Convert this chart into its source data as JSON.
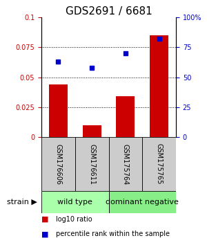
{
  "title": "GDS2691 / 6681",
  "samples": [
    "GSM176606",
    "GSM176611",
    "GSM175764",
    "GSM175765"
  ],
  "bar_values": [
    0.044,
    0.01,
    0.034,
    0.085
  ],
  "percentile_values": [
    63,
    58,
    70,
    82
  ],
  "ylim_left": [
    0,
    0.1
  ],
  "ylim_right": [
    0,
    100
  ],
  "yticks_left": [
    0,
    0.025,
    0.05,
    0.075,
    0.1
  ],
  "ytick_labels_left": [
    "0",
    "0.025",
    "0.05",
    "0.075",
    "0.1"
  ],
  "yticks_right": [
    0,
    25,
    50,
    75,
    100
  ],
  "ytick_labels_right": [
    "0",
    "25",
    "50",
    "75",
    "100%"
  ],
  "gridlines": [
    0.025,
    0.05,
    0.075
  ],
  "bar_color": "#cc0000",
  "dot_color": "#0000cc",
  "categories": [
    {
      "label": "wild type",
      "span": [
        0,
        2
      ],
      "color": "#aaffaa"
    },
    {
      "label": "dominant negative",
      "span": [
        2,
        4
      ],
      "color": "#88ee88"
    }
  ],
  "legend_bar_label": "log10 ratio",
  "legend_dot_label": "percentile rank within the sample",
  "strain_label": "strain",
  "sample_box_color": "#cccccc",
  "background_color": "#ffffff",
  "title_fontsize": 11,
  "tick_fontsize": 7,
  "sample_fontsize": 7,
  "cat_fontsize": 8,
  "legend_fontsize": 7
}
